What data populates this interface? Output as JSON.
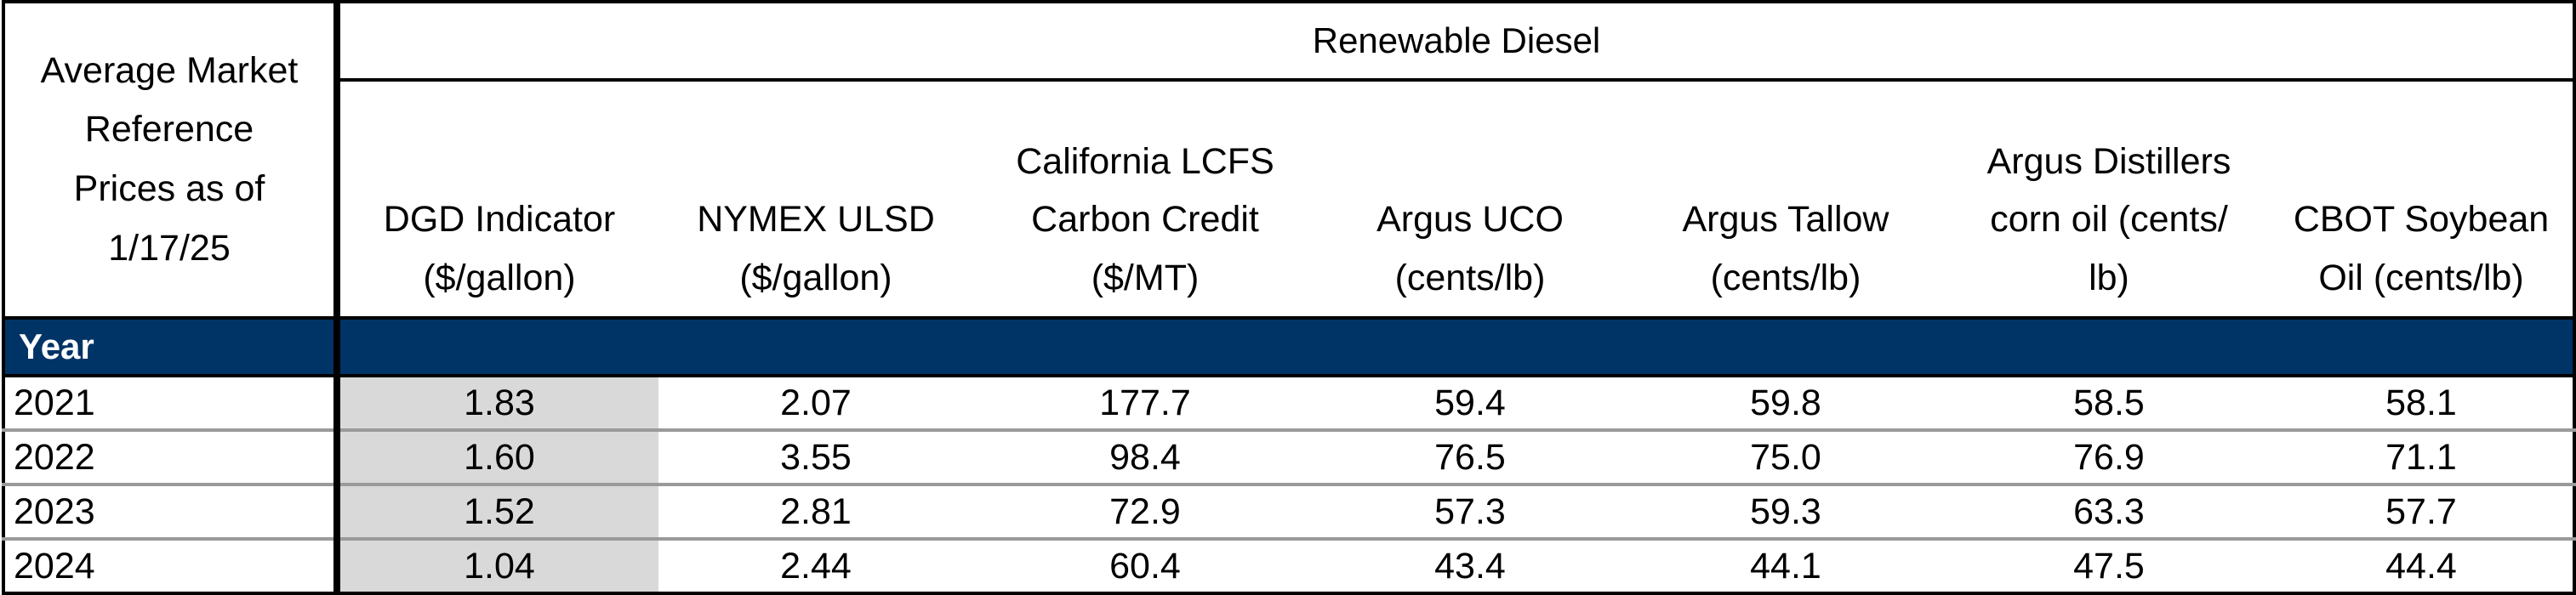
{
  "table": {
    "corner_label": [
      "Average Market",
      "Reference",
      "Prices as of",
      "1/17/25"
    ],
    "group_label": "Renewable Diesel",
    "columns": [
      {
        "lines": [
          "DGD Indicator",
          "($/gallon)"
        ]
      },
      {
        "lines": [
          "NYMEX ULSD",
          "($/gallon)"
        ]
      },
      {
        "lines": [
          "California LCFS",
          "Carbon Credit",
          "($/MT)"
        ]
      },
      {
        "lines": [
          "Argus UCO",
          "(cents/lb)"
        ]
      },
      {
        "lines": [
          "Argus Tallow",
          "(cents/lb)"
        ]
      },
      {
        "lines": [
          "Argus Distillers",
          "corn oil  (cents/",
          "lb)"
        ]
      },
      {
        "lines": [
          "CBOT Soybean",
          "Oil (cents/lb)"
        ]
      }
    ],
    "year_header": "Year",
    "rows": [
      {
        "year": "2021",
        "values": [
          "1.83",
          "2.07",
          "177.7",
          "59.4",
          "59.8",
          "58.5",
          "58.1"
        ]
      },
      {
        "year": "2022",
        "values": [
          "1.60",
          "3.55",
          "98.4",
          "76.5",
          "75.0",
          "76.9",
          "71.1"
        ]
      },
      {
        "year": "2023",
        "values": [
          "1.52",
          "2.81",
          "72.9",
          "57.3",
          "59.3",
          "63.3",
          "57.7"
        ]
      },
      {
        "year": "2024",
        "values": [
          "1.04",
          "2.44",
          "60.4",
          "43.4",
          "44.1",
          "47.5",
          "44.4"
        ]
      }
    ],
    "colors": {
      "year_band": "#003466",
      "shaded_cell": "#d9d9d9",
      "row_divider": "#9a9a9a"
    }
  }
}
